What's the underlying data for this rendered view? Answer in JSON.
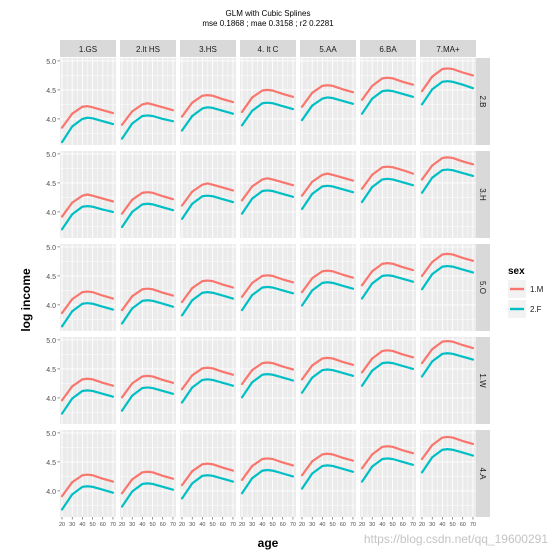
{
  "chart_data": {
    "type": "line",
    "title": "GLM with Cubic Splines",
    "subtitle": "mse 0.1868 ; mae 0.3158 ; r2 0.2281",
    "xlabel": "age",
    "ylabel": "log income",
    "legend": {
      "title": "sex",
      "position": "right",
      "entries": [
        {
          "label": "1.M",
          "color": "#F8766D"
        },
        {
          "label": "2.F",
          "color": "#00BFC4"
        }
      ]
    },
    "xlim": [
      18,
      73
    ],
    "ylim": [
      3.55,
      5.05
    ],
    "x_ticks": [
      20,
      30,
      40,
      50,
      60,
      70
    ],
    "x_tick_labels": [
      "20",
      "30",
      "40",
      "50",
      "60",
      "70"
    ],
    "y_ticks": [
      4.0,
      4.5,
      5.0
    ],
    "y_tick_labels": [
      "4.0",
      "4.5",
      "5.0"
    ],
    "grid": true,
    "columns": [
      "1.GS",
      "2.lt HS",
      "3.HS",
      "4. lt C",
      "5.AA",
      "6.BA",
      "7.MA+"
    ],
    "rows": [
      "2.B",
      "3.H",
      "5.O",
      "1.W",
      "4.A"
    ],
    "age_points": [
      20,
      30,
      40,
      45,
      50,
      60,
      70
    ],
    "series": [
      {
        "name": "1.M",
        "color": "#F8766D"
      },
      {
        "name": "2.F",
        "color": "#00BFC4"
      }
    ],
    "facet_values": [
      [
        {
          "M": [
            3.85,
            4.09,
            4.21,
            4.22,
            4.2,
            4.15,
            4.1
          ],
          "F": [
            3.6,
            3.87,
            4.0,
            4.02,
            4.01,
            3.96,
            3.91
          ]
        },
        {
          "M": [
            3.9,
            4.13,
            4.25,
            4.27,
            4.25,
            4.2,
            4.15
          ],
          "F": [
            3.66,
            3.92,
            4.05,
            4.06,
            4.05,
            4.0,
            3.96
          ]
        },
        {
          "M": [
            4.04,
            4.28,
            4.4,
            4.41,
            4.4,
            4.34,
            4.29
          ],
          "F": [
            3.8,
            4.05,
            4.18,
            4.2,
            4.19,
            4.14,
            4.09
          ]
        },
        {
          "M": [
            4.12,
            4.37,
            4.49,
            4.5,
            4.49,
            4.43,
            4.38
          ],
          "F": [
            3.89,
            4.14,
            4.27,
            4.28,
            4.27,
            4.22,
            4.17
          ]
        },
        {
          "M": [
            4.21,
            4.45,
            4.57,
            4.58,
            4.57,
            4.51,
            4.46
          ],
          "F": [
            3.98,
            4.23,
            4.35,
            4.37,
            4.36,
            4.31,
            4.26
          ]
        },
        {
          "M": [
            4.33,
            4.57,
            4.7,
            4.71,
            4.7,
            4.64,
            4.59
          ],
          "F": [
            4.09,
            4.35,
            4.48,
            4.49,
            4.48,
            4.43,
            4.38
          ]
        },
        {
          "M": [
            4.48,
            4.73,
            4.86,
            4.87,
            4.86,
            4.8,
            4.75
          ],
          "F": [
            4.25,
            4.51,
            4.64,
            4.65,
            4.64,
            4.59,
            4.53
          ]
        }
      ],
      [
        {
          "M": [
            3.92,
            4.16,
            4.28,
            4.3,
            4.28,
            4.23,
            4.18
          ],
          "F": [
            3.7,
            3.96,
            4.09,
            4.1,
            4.09,
            4.04,
            4.0
          ]
        },
        {
          "M": [
            3.97,
            4.21,
            4.33,
            4.34,
            4.33,
            4.27,
            4.22
          ],
          "F": [
            3.74,
            4.0,
            4.13,
            4.14,
            4.13,
            4.08,
            4.03
          ]
        },
        {
          "M": [
            4.11,
            4.35,
            4.47,
            4.49,
            4.47,
            4.42,
            4.37
          ],
          "F": [
            3.88,
            4.14,
            4.27,
            4.28,
            4.27,
            4.22,
            4.17
          ]
        },
        {
          "M": [
            4.2,
            4.44,
            4.56,
            4.58,
            4.56,
            4.51,
            4.46
          ],
          "F": [
            3.97,
            4.23,
            4.36,
            4.37,
            4.36,
            4.31,
            4.26
          ]
        },
        {
          "M": [
            4.28,
            4.52,
            4.64,
            4.66,
            4.64,
            4.59,
            4.54
          ],
          "F": [
            4.05,
            4.31,
            4.44,
            4.45,
            4.44,
            4.39,
            4.34
          ]
        },
        {
          "M": [
            4.4,
            4.64,
            4.77,
            4.78,
            4.77,
            4.72,
            4.66
          ],
          "F": [
            4.17,
            4.43,
            4.56,
            4.57,
            4.56,
            4.51,
            4.46
          ]
        },
        {
          "M": [
            4.56,
            4.8,
            4.93,
            4.94,
            4.93,
            4.87,
            4.82
          ],
          "F": [
            4.33,
            4.59,
            4.72,
            4.73,
            4.72,
            4.67,
            4.62
          ]
        }
      ],
      [
        {
          "M": [
            3.86,
            4.1,
            4.22,
            4.23,
            4.22,
            4.16,
            4.11
          ],
          "F": [
            3.63,
            3.89,
            4.02,
            4.03,
            4.02,
            3.97,
            3.92
          ]
        },
        {
          "M": [
            3.91,
            4.15,
            4.27,
            4.28,
            4.27,
            4.21,
            4.16
          ],
          "F": [
            3.68,
            3.94,
            4.07,
            4.08,
            4.07,
            4.02,
            3.97
          ]
        },
        {
          "M": [
            4.05,
            4.29,
            4.41,
            4.42,
            4.41,
            4.35,
            4.3
          ],
          "F": [
            3.82,
            4.08,
            4.21,
            4.22,
            4.21,
            4.16,
            4.11
          ]
        },
        {
          "M": [
            4.14,
            4.38,
            4.5,
            4.51,
            4.5,
            4.44,
            4.39
          ],
          "F": [
            3.91,
            4.17,
            4.3,
            4.31,
            4.3,
            4.25,
            4.2
          ]
        },
        {
          "M": [
            4.22,
            4.46,
            4.58,
            4.59,
            4.58,
            4.52,
            4.47
          ],
          "F": [
            3.99,
            4.25,
            4.38,
            4.39,
            4.38,
            4.33,
            4.28
          ]
        },
        {
          "M": [
            4.34,
            4.58,
            4.71,
            4.72,
            4.71,
            4.65,
            4.6
          ],
          "F": [
            4.11,
            4.37,
            4.5,
            4.51,
            4.5,
            4.45,
            4.4
          ]
        },
        {
          "M": [
            4.5,
            4.74,
            4.87,
            4.88,
            4.87,
            4.81,
            4.76
          ],
          "F": [
            4.27,
            4.53,
            4.66,
            4.67,
            4.66,
            4.61,
            4.56
          ]
        }
      ],
      [
        {
          "M": [
            3.96,
            4.2,
            4.32,
            4.33,
            4.32,
            4.26,
            4.21
          ],
          "F": [
            3.73,
            3.99,
            4.12,
            4.13,
            4.12,
            4.07,
            4.02
          ]
        },
        {
          "M": [
            4.01,
            4.25,
            4.37,
            4.38,
            4.37,
            4.31,
            4.26
          ],
          "F": [
            3.78,
            4.04,
            4.17,
            4.18,
            4.17,
            4.12,
            4.07
          ]
        },
        {
          "M": [
            4.15,
            4.39,
            4.51,
            4.52,
            4.51,
            4.45,
            4.4
          ],
          "F": [
            3.92,
            4.18,
            4.31,
            4.32,
            4.31,
            4.26,
            4.21
          ]
        },
        {
          "M": [
            4.24,
            4.48,
            4.6,
            4.61,
            4.6,
            4.54,
            4.49
          ],
          "F": [
            4.01,
            4.27,
            4.4,
            4.41,
            4.4,
            4.35,
            4.3
          ]
        },
        {
          "M": [
            4.32,
            4.56,
            4.68,
            4.69,
            4.68,
            4.62,
            4.57
          ],
          "F": [
            4.09,
            4.35,
            4.48,
            4.49,
            4.48,
            4.43,
            4.38
          ]
        },
        {
          "M": [
            4.44,
            4.68,
            4.81,
            4.82,
            4.81,
            4.75,
            4.7
          ],
          "F": [
            4.21,
            4.47,
            4.6,
            4.61,
            4.6,
            4.55,
            4.5
          ]
        },
        {
          "M": [
            4.6,
            4.84,
            4.97,
            4.98,
            4.97,
            4.91,
            4.86
          ],
          "F": [
            4.37,
            4.63,
            4.76,
            4.77,
            4.76,
            4.71,
            4.66
          ]
        }
      ],
      [
        {
          "M": [
            3.91,
            4.15,
            4.27,
            4.28,
            4.27,
            4.21,
            4.16
          ],
          "F": [
            3.68,
            3.94,
            4.07,
            4.08,
            4.07,
            4.02,
            3.97
          ]
        },
        {
          "M": [
            3.96,
            4.2,
            4.32,
            4.33,
            4.32,
            4.26,
            4.21
          ],
          "F": [
            3.73,
            3.99,
            4.12,
            4.13,
            4.12,
            4.07,
            4.02
          ]
        },
        {
          "M": [
            4.1,
            4.34,
            4.46,
            4.47,
            4.46,
            4.4,
            4.35
          ],
          "F": [
            3.87,
            4.13,
            4.26,
            4.27,
            4.26,
            4.21,
            4.16
          ]
        },
        {
          "M": [
            4.19,
            4.43,
            4.55,
            4.56,
            4.55,
            4.49,
            4.44
          ],
          "F": [
            3.96,
            4.22,
            4.35,
            4.36,
            4.35,
            4.3,
            4.25
          ]
        },
        {
          "M": [
            4.27,
            4.51,
            4.63,
            4.64,
            4.63,
            4.57,
            4.52
          ],
          "F": [
            4.04,
            4.3,
            4.43,
            4.44,
            4.43,
            4.38,
            4.33
          ]
        },
        {
          "M": [
            4.39,
            4.63,
            4.76,
            4.77,
            4.76,
            4.7,
            4.65
          ],
          "F": [
            4.16,
            4.42,
            4.55,
            4.56,
            4.55,
            4.5,
            4.45
          ]
        },
        {
          "M": [
            4.55,
            4.79,
            4.92,
            4.93,
            4.92,
            4.86,
            4.81
          ],
          "F": [
            4.32,
            4.58,
            4.71,
            4.72,
            4.71,
            4.66,
            4.61
          ]
        }
      ]
    ]
  },
  "watermark": "https://blog.csdn.net/qq_19600291"
}
